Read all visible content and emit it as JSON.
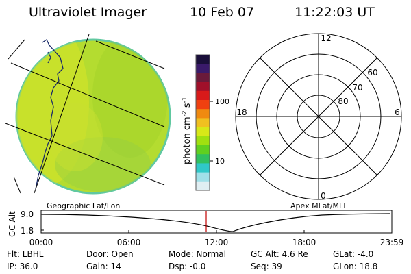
{
  "header": {
    "title": "Ultraviolet Imager",
    "date": "10 Feb 07",
    "time": "11:22:03 UT"
  },
  "colorbar": {
    "label": "photon cm",
    "label_exp1": "-2",
    "label_s": "s",
    "label_exp2": "-1",
    "ticks": [
      "100",
      "10"
    ],
    "colors": [
      "#1a0f3a",
      "#3a1a6a",
      "#6a1a3a",
      "#a0102a",
      "#d81a1a",
      "#f04010",
      "#f08a10",
      "#f0c020",
      "#d8e818",
      "#a0e010",
      "#60d020",
      "#30c060",
      "#30c8c8",
      "#a0e0e8",
      "#e0eef2"
    ]
  },
  "polar": {
    "mlt_labels": [
      "12",
      "6",
      "0",
      "18"
    ],
    "lat_labels": [
      "60",
      "70",
      "80"
    ]
  },
  "panels": {
    "left_label": "Geographic Lat/Lon",
    "right_label": "Apex MLat/MLT"
  },
  "altplot": {
    "ylabel": "GC Alt",
    "yticks": [
      "9.0",
      "1.8"
    ],
    "xticks": [
      "00:00",
      "06:00",
      "12:00",
      "18:00",
      "23:59"
    ],
    "marker_time": "11:22:03"
  },
  "info": {
    "flt": "Flt: LBHL",
    "ip": "IP: 36.0",
    "door": "Door: Open",
    "gain": "Gain: 14",
    "mode": "Mode: Normal",
    "dsp": "Dsp:  -0.0",
    "gcalt": "GC Alt: 4.6 Re",
    "seq": "Seq: 39",
    "glat": "GLat:  -4.0",
    "glon": "GLon:  18.8"
  }
}
